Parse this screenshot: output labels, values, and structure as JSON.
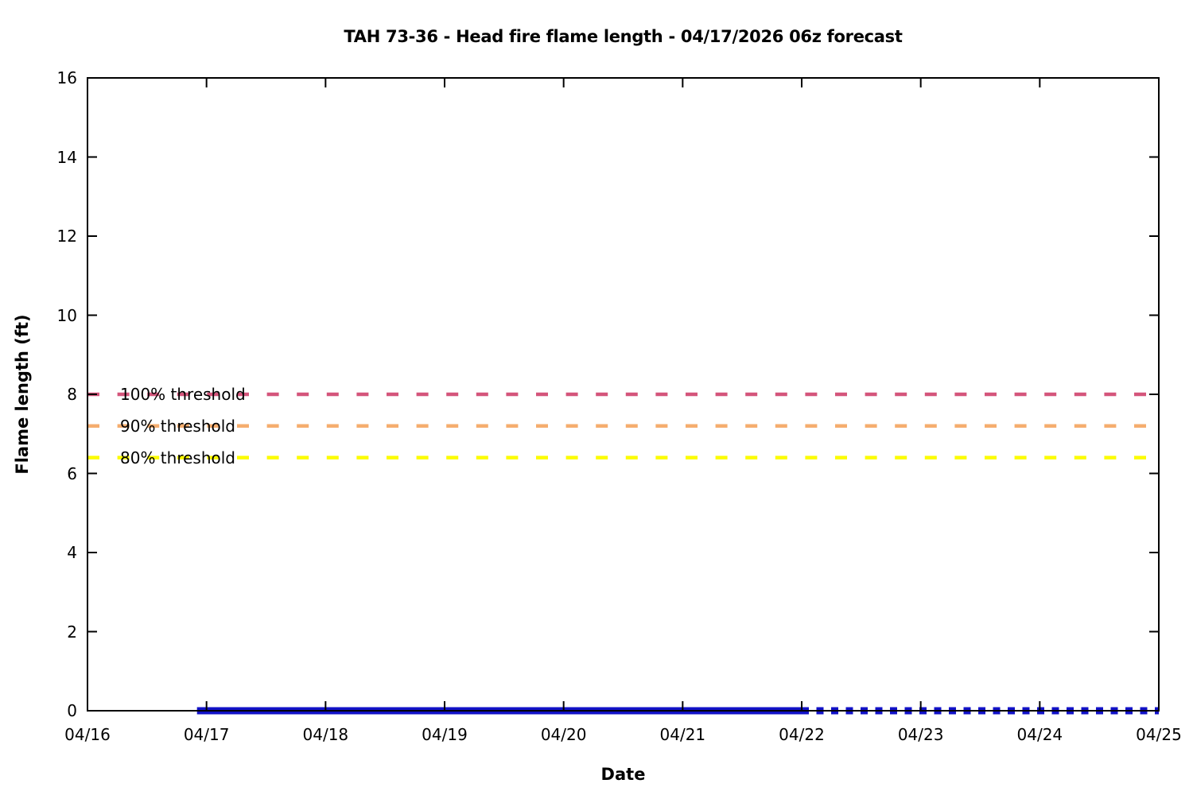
{
  "chart_data": {
    "type": "line",
    "title": "TAH 73-36 - Head fire flame length - 04/17/2026 06z forecast",
    "xlabel": "Date",
    "ylabel": "Flame length (ft)",
    "ylim": [
      0,
      16
    ],
    "yticks": [
      0,
      2,
      4,
      6,
      8,
      10,
      12,
      14,
      16
    ],
    "xtick_labels": [
      "04/16",
      "04/17",
      "04/18",
      "04/19",
      "04/20",
      "04/21",
      "04/22",
      "04/23",
      "04/24",
      "04/25"
    ],
    "grid": false,
    "legend_position": "inline-left-labels",
    "axis_color": "#000000",
    "thresholds": [
      {
        "label": "100% threshold",
        "value": 8.0,
        "color": "#d4557b"
      },
      {
        "label": "90% threshold",
        "value": 7.2,
        "color": "#f5ad6e"
      },
      {
        "label": "80% threshold",
        "value": 6.4,
        "color": "#fcfc00"
      }
    ],
    "series": [
      {
        "name": "head-fire-flame-length-forecast-solid",
        "style": "solid",
        "color": "#1111c7",
        "y_value": 0,
        "x_start_day": 0.92,
        "x_end_day": 6.0
      },
      {
        "name": "head-fire-flame-length-forecast-dotted",
        "style": "dotted",
        "color": "#1111c7",
        "y_value": 0,
        "x_start_day": 6.0,
        "x_end_day": 9.0
      }
    ]
  }
}
